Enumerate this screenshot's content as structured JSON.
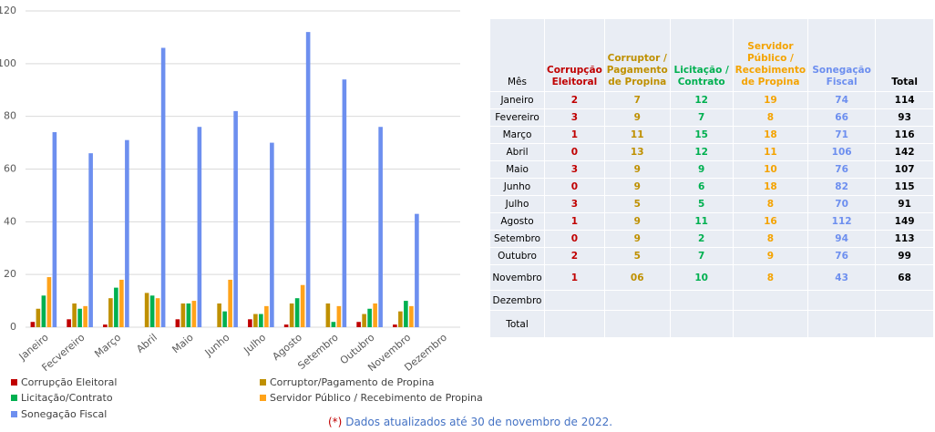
{
  "chart_data": {
    "type": "bar",
    "categories": [
      "Janeiro",
      "Fecvereiro",
      "Março",
      "Abril",
      "Maio",
      "Junho",
      "Julho",
      "Agosto",
      "Setembro",
      "Outubro",
      "Novembro",
      "Dezembro"
    ],
    "series": [
      {
        "name": "Corrupção Eleitoral",
        "color": "#c00000",
        "values": [
          2,
          3,
          1,
          0,
          3,
          0,
          3,
          1,
          0,
          2,
          1,
          null
        ]
      },
      {
        "name": "Corruptor/Pagamento de Propina",
        "color": "#bf9000",
        "values": [
          7,
          9,
          11,
          13,
          9,
          9,
          5,
          9,
          9,
          5,
          6,
          null
        ]
      },
      {
        "name": "Licitação/Contrato",
        "color": "#00b050",
        "values": [
          12,
          7,
          15,
          12,
          9,
          6,
          5,
          11,
          2,
          7,
          10,
          null
        ]
      },
      {
        "name": "Servidor Público / Recebimento de Propina",
        "color": "#ffa31a",
        "values": [
          19,
          8,
          18,
          11,
          10,
          18,
          8,
          16,
          8,
          9,
          8,
          null
        ]
      },
      {
        "name": "Sonegação Fiscal",
        "color": "#6d8fef",
        "values": [
          74,
          66,
          71,
          106,
          76,
          82,
          70,
          112,
          94,
          76,
          43,
          null
        ]
      }
    ],
    "ylim": [
      0,
      120
    ],
    "yticks": [
      0,
      20,
      40,
      60,
      80,
      100,
      120
    ],
    "grid": true
  },
  "table": {
    "header": [
      "Mês",
      "Corrupção Eleitoral",
      "Corruptor / Pagamento de Propina",
      "Licitação / Contrato",
      "Servidor Público / Recebimento de Propina",
      "Sonegação Fiscal",
      "Total"
    ],
    "header_colors": [
      "#000000",
      "#c00000",
      "#bf9000",
      "#00b050",
      "#f4a300",
      "#6d8fef",
      "#000000"
    ],
    "rows": [
      [
        "Janeiro",
        2,
        7,
        12,
        19,
        74,
        114
      ],
      [
        "Fevereiro",
        3,
        9,
        7,
        8,
        66,
        93
      ],
      [
        "Março",
        1,
        11,
        15,
        18,
        71,
        116
      ],
      [
        "Abril",
        0,
        13,
        12,
        11,
        106,
        142
      ],
      [
        "Maio",
        3,
        9,
        9,
        10,
        76,
        107
      ],
      [
        "Junho",
        0,
        9,
        6,
        18,
        82,
        115
      ],
      [
        "Julho",
        3,
        5,
        5,
        8,
        70,
        91
      ],
      [
        "Agosto",
        1,
        9,
        11,
        16,
        112,
        149
      ],
      [
        "Setembro",
        0,
        9,
        2,
        8,
        94,
        113
      ],
      [
        "Outubro",
        2,
        5,
        7,
        9,
        76,
        99
      ],
      [
        "Novembro",
        1,
        "06",
        10,
        8,
        43,
        68
      ],
      [
        "Dezembro",
        null,
        null,
        null,
        null,
        null,
        null
      ],
      [
        "Total",
        null,
        null,
        null,
        null,
        null,
        null
      ]
    ]
  },
  "footnote": {
    "marker": "(*)",
    "text": "Dados atualizados até 30 de novembro de 2022."
  }
}
